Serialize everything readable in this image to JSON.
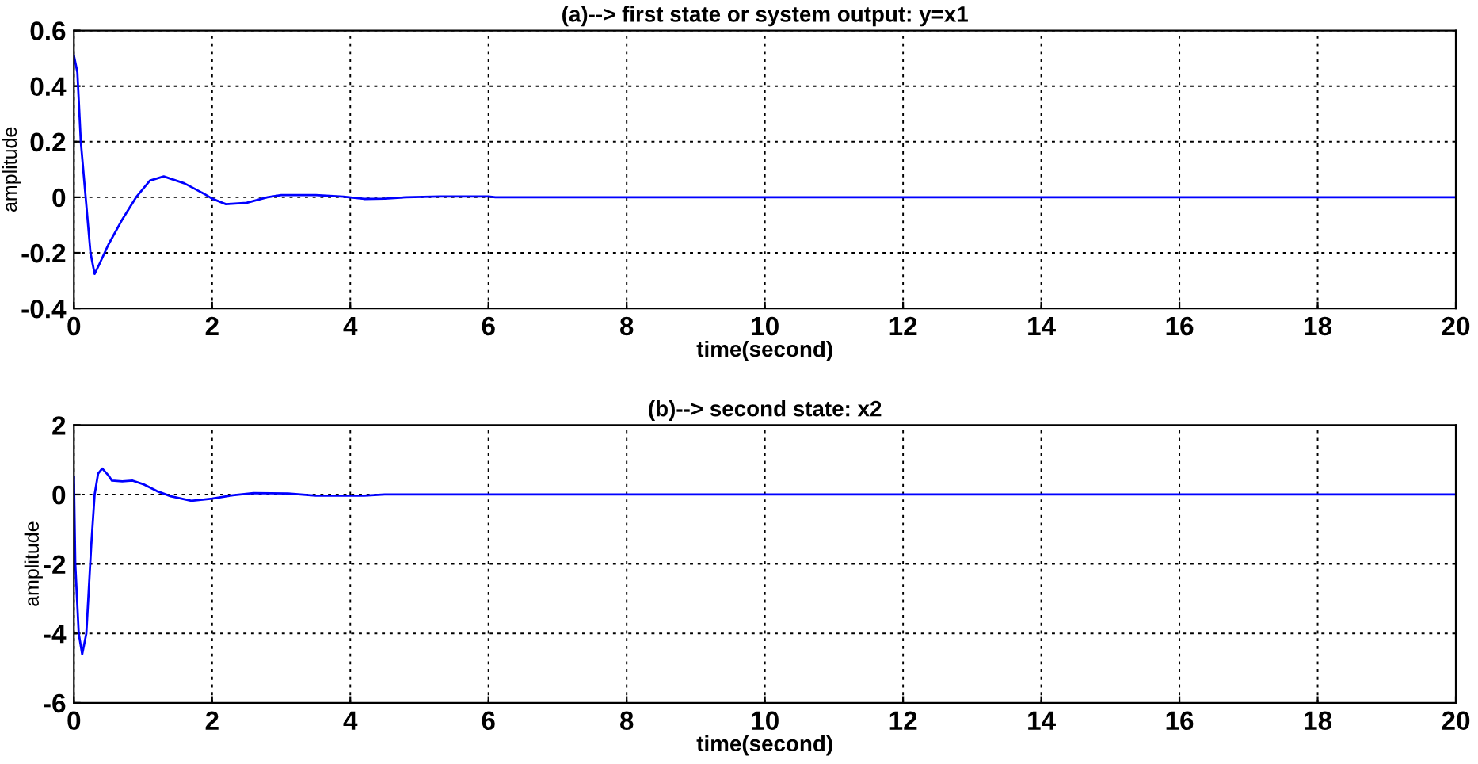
{
  "chart_data": [
    {
      "type": "line",
      "title": "(a)--> first state or system output: y=x1",
      "xlabel": "time(second)",
      "ylabel": "amplitude",
      "xlim": [
        0,
        20
      ],
      "ylim": [
        -0.4,
        0.6
      ],
      "xticks": [
        0,
        2,
        4,
        6,
        8,
        10,
        12,
        14,
        16,
        18,
        20
      ],
      "yticks": [
        -0.4,
        -0.2,
        0,
        0.2,
        0.4,
        0.6
      ],
      "grid": true,
      "series": [
        {
          "color": "#0000ff",
          "x": [
            0,
            0.05,
            0.1,
            0.17,
            0.24,
            0.3,
            0.37,
            0.5,
            0.7,
            0.9,
            1.1,
            1.3,
            1.6,
            1.9,
            2.0,
            2.2,
            2.5,
            2.8,
            3.0,
            3.5,
            3.9,
            4.2,
            4.5,
            4.8,
            5.3,
            6,
            6.1,
            8,
            12,
            16,
            20
          ],
          "values": [
            0.51,
            0.45,
            0.2,
            0,
            -0.2,
            -0.276,
            -0.24,
            -0.17,
            -0.08,
            0,
            0.06,
            0.075,
            0.05,
            0.01,
            -0.005,
            -0.025,
            -0.02,
            0,
            0.008,
            0.008,
            0.002,
            -0.006,
            -0.005,
            0,
            0.003,
            0.003,
            0,
            0,
            0,
            0,
            0
          ]
        }
      ]
    },
    {
      "type": "line",
      "title": "(b)--> second state: x2",
      "xlabel": "time(second)",
      "ylabel": "amplitude",
      "xlim": [
        0,
        20
      ],
      "ylim": [
        -6,
        2
      ],
      "xticks": [
        0,
        2,
        4,
        6,
        8,
        10,
        12,
        14,
        16,
        18,
        20
      ],
      "yticks": [
        -6,
        -4,
        -2,
        0,
        2
      ],
      "grid": true,
      "series": [
        {
          "color": "#0000ff",
          "x": [
            0,
            0.02,
            0.07,
            0.12,
            0.18,
            0.25,
            0.3,
            0.35,
            0.41,
            0.5,
            0.55,
            0.7,
            0.85,
            1.0,
            1.2,
            1.4,
            1.7,
            2.0,
            2.3,
            2.6,
            3.1,
            3.5,
            4.2,
            4.5,
            8,
            12,
            16,
            20
          ],
          "values": [
            0.5,
            -2,
            -4,
            -4.6,
            -4,
            -1.5,
            0,
            0.6,
            0.75,
            0.55,
            0.4,
            0.38,
            0.4,
            0.3,
            0.1,
            -0.05,
            -0.18,
            -0.12,
            -0.02,
            0.04,
            0.03,
            -0.03,
            -0.03,
            0,
            0,
            0,
            0,
            0
          ]
        }
      ]
    }
  ]
}
